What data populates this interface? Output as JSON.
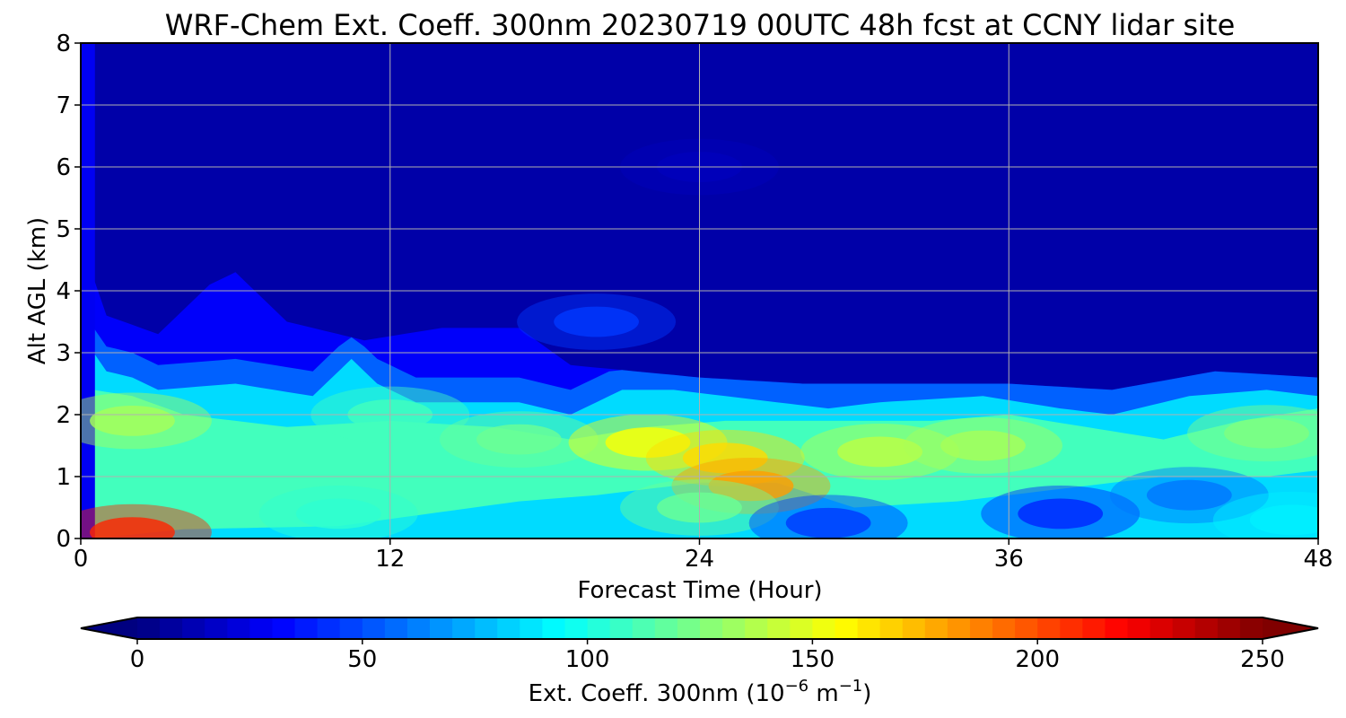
{
  "chart_data": {
    "type": "heatmap",
    "title": "WRF-Chem Ext. Coeff. 300nm  20230719 00UTC 48h fcst at CCNY lidar site",
    "xlabel": "Forecast Time (Hour)",
    "ylabel": "Alt AGL (km)",
    "xlim": [
      0,
      48
    ],
    "ylim": [
      0,
      8
    ],
    "xticks": [
      "0",
      "12",
      "24",
      "36",
      "48"
    ],
    "yticks": [
      "0",
      "1",
      "2",
      "3",
      "4",
      "5",
      "6",
      "7",
      "8"
    ],
    "grid": true,
    "colormap": "jet",
    "colorbar": {
      "label_main": "Ext. Coeff. 300nm  (10",
      "label_exp1": "−6",
      "label_mid": " m",
      "label_exp2": "−1",
      "label_end": ")",
      "min": 0,
      "max": 250,
      "ticks": [
        "0",
        "50",
        "100",
        "150",
        "200",
        "250"
      ],
      "extend": "both",
      "orientation": "horizontal"
    },
    "features": [
      {
        "hour": 2,
        "alt_km": 0.1,
        "value": 210
      },
      {
        "hour": 2,
        "alt_km": 1.9,
        "value": 135
      },
      {
        "hour": 10,
        "alt_km": 0.4,
        "value": 105
      },
      {
        "hour": 12,
        "alt_km": 2.0,
        "value": 110
      },
      {
        "hour": 17,
        "alt_km": 1.6,
        "value": 120
      },
      {
        "hour": 22,
        "alt_km": 1.55,
        "value": 155
      },
      {
        "hour": 25,
        "alt_km": 1.3,
        "value": 165
      },
      {
        "hour": 26,
        "alt_km": 0.85,
        "value": 180
      },
      {
        "hour": 24,
        "alt_km": 0.5,
        "value": 120
      },
      {
        "hour": 29,
        "alt_km": 0.25,
        "value": 45
      },
      {
        "hour": 31,
        "alt_km": 1.4,
        "value": 140
      },
      {
        "hour": 35,
        "alt_km": 1.5,
        "value": 135
      },
      {
        "hour": 38,
        "alt_km": 0.4,
        "value": 40
      },
      {
        "hour": 43,
        "alt_km": 0.7,
        "value": 60
      },
      {
        "hour": 46,
        "alt_km": 1.7,
        "value": 125
      },
      {
        "hour": 47,
        "alt_km": 0.3,
        "value": 90
      },
      {
        "hour": 20,
        "alt_km": 3.5,
        "value": 45
      },
      {
        "hour": 24,
        "alt_km": 6.0,
        "value": 15
      },
      {
        "hour": 38,
        "alt_km": 7.0,
        "value": 10
      }
    ]
  }
}
